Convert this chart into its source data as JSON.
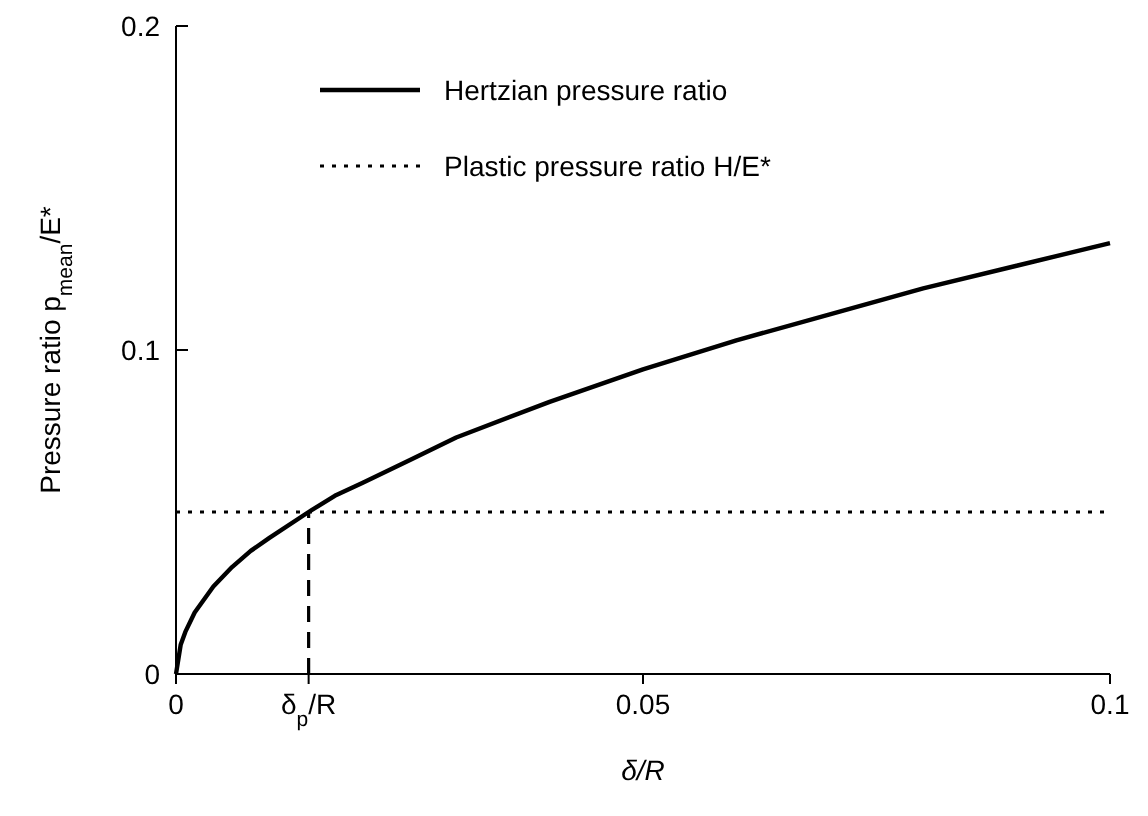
{
  "chart_data": {
    "type": "line",
    "xlabel": "δ/R",
    "ylabel": "Pressure ratio p$_{mean}$/E*",
    "xlim": [
      0,
      0.1
    ],
    "ylim": [
      0,
      0.2
    ],
    "xticks": [
      0,
      {
        "value": 0.0142,
        "label": "δ$_{p}$/R"
      },
      0.05,
      0.1
    ],
    "yticks": [
      0,
      0.1,
      0.2
    ],
    "legend": "top left",
    "grid": false,
    "series": [
      {
        "name": "Hertzian pressure ratio",
        "color": "#000000",
        "line_style": "solid",
        "x": [
          0,
          0.0005,
          0.001,
          0.002,
          0.004,
          0.006,
          0.008,
          0.01,
          0.0142,
          0.017,
          0.02,
          0.025,
          0.03,
          0.04,
          0.05,
          0.06,
          0.07,
          0.08,
          0.09,
          0.1
        ],
        "values": [
          0,
          0.009,
          0.013,
          0.019,
          0.027,
          0.033,
          0.038,
          0.042,
          0.05,
          0.055,
          0.059,
          0.066,
          0.073,
          0.084,
          0.094,
          0.103,
          0.111,
          0.119,
          0.126,
          0.133
        ]
      },
      {
        "name": "Plastic pressure ratio H/E*",
        "color": "#000000",
        "line_style": "dotted",
        "x": [
          0,
          0.1
        ],
        "values": [
          0.05,
          0.05
        ]
      },
      {
        "color": "#000000",
        "line_style": "dashed",
        "x": [
          0.0142,
          0.0142
        ],
        "values": [
          0,
          0.05
        ]
      }
    ]
  }
}
